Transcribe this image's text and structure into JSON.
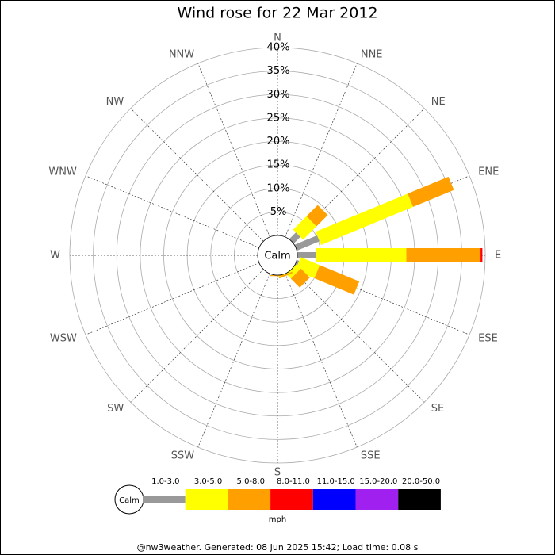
{
  "chart_data": {
    "type": "wind_rose",
    "title": "Wind rose for 22 Mar 2012",
    "directions": [
      "N",
      "NNE",
      "NE",
      "ENE",
      "E",
      "ESE",
      "SE",
      "SSE",
      "S",
      "SSW",
      "SW",
      "WSW",
      "W",
      "WNW",
      "NW",
      "NNW"
    ],
    "center_label": "Calm",
    "rlim": [
      0,
      40
    ],
    "rticks": [
      {
        "value": 5,
        "label": "5%"
      },
      {
        "value": 10,
        "label": "10%"
      },
      {
        "value": 15,
        "label": "15%"
      },
      {
        "value": 20,
        "label": "20%"
      },
      {
        "value": 25,
        "label": "25%"
      },
      {
        "value": 30,
        "label": "30%"
      },
      {
        "value": 35,
        "label": "35%"
      },
      {
        "value": 40,
        "label": "40%"
      }
    ],
    "series": [
      {
        "name": "1.0-3.0",
        "color": "#999999",
        "values": [
          0,
          0,
          2,
          5.2,
          4,
          0.5,
          0,
          0,
          0,
          0,
          0,
          0,
          0,
          0,
          0,
          0
        ]
      },
      {
        "name": "3.0-5.0",
        "color": "#ffff00",
        "values": [
          0,
          0,
          4,
          21.2,
          19.2,
          4.4,
          1.3,
          0.2,
          0,
          0,
          0,
          0,
          0,
          0,
          0,
          0
        ]
      },
      {
        "name": "5.0-8.0",
        "color": "#ffa000",
        "values": [
          0,
          0,
          3.4,
          9.4,
          15.8,
          9.1,
          2.7,
          0.3,
          0.2,
          0,
          0,
          0,
          0,
          0,
          0,
          0
        ]
      },
      {
        "name": "8.0-11.0",
        "color": "#ff0000",
        "values": [
          0,
          0,
          0,
          0,
          0.4,
          0,
          0,
          0,
          0,
          0,
          0,
          0,
          0,
          0,
          0,
          0
        ]
      },
      {
        "name": "11.0-15.0",
        "color": "#0000ff",
        "values": [
          0,
          0,
          0,
          0,
          0,
          0,
          0,
          0,
          0,
          0,
          0,
          0,
          0,
          0,
          0,
          0
        ]
      },
      {
        "name": "15.0-20.0",
        "color": "#a020f0",
        "values": [
          0,
          0,
          0,
          0,
          0,
          0,
          0,
          0,
          0,
          0,
          0,
          0,
          0,
          0,
          0,
          0
        ]
      },
      {
        "name": "20.0-50.0",
        "color": "#000000",
        "values": [
          0,
          0,
          0,
          0,
          0,
          0,
          0,
          0,
          0,
          0,
          0,
          0,
          0,
          0,
          0,
          0
        ]
      }
    ],
    "legend_unit": "mph",
    "footer": "@nw3weather. Generated: 08 Jun 2025 15:42; Load time: 0.08 s"
  }
}
